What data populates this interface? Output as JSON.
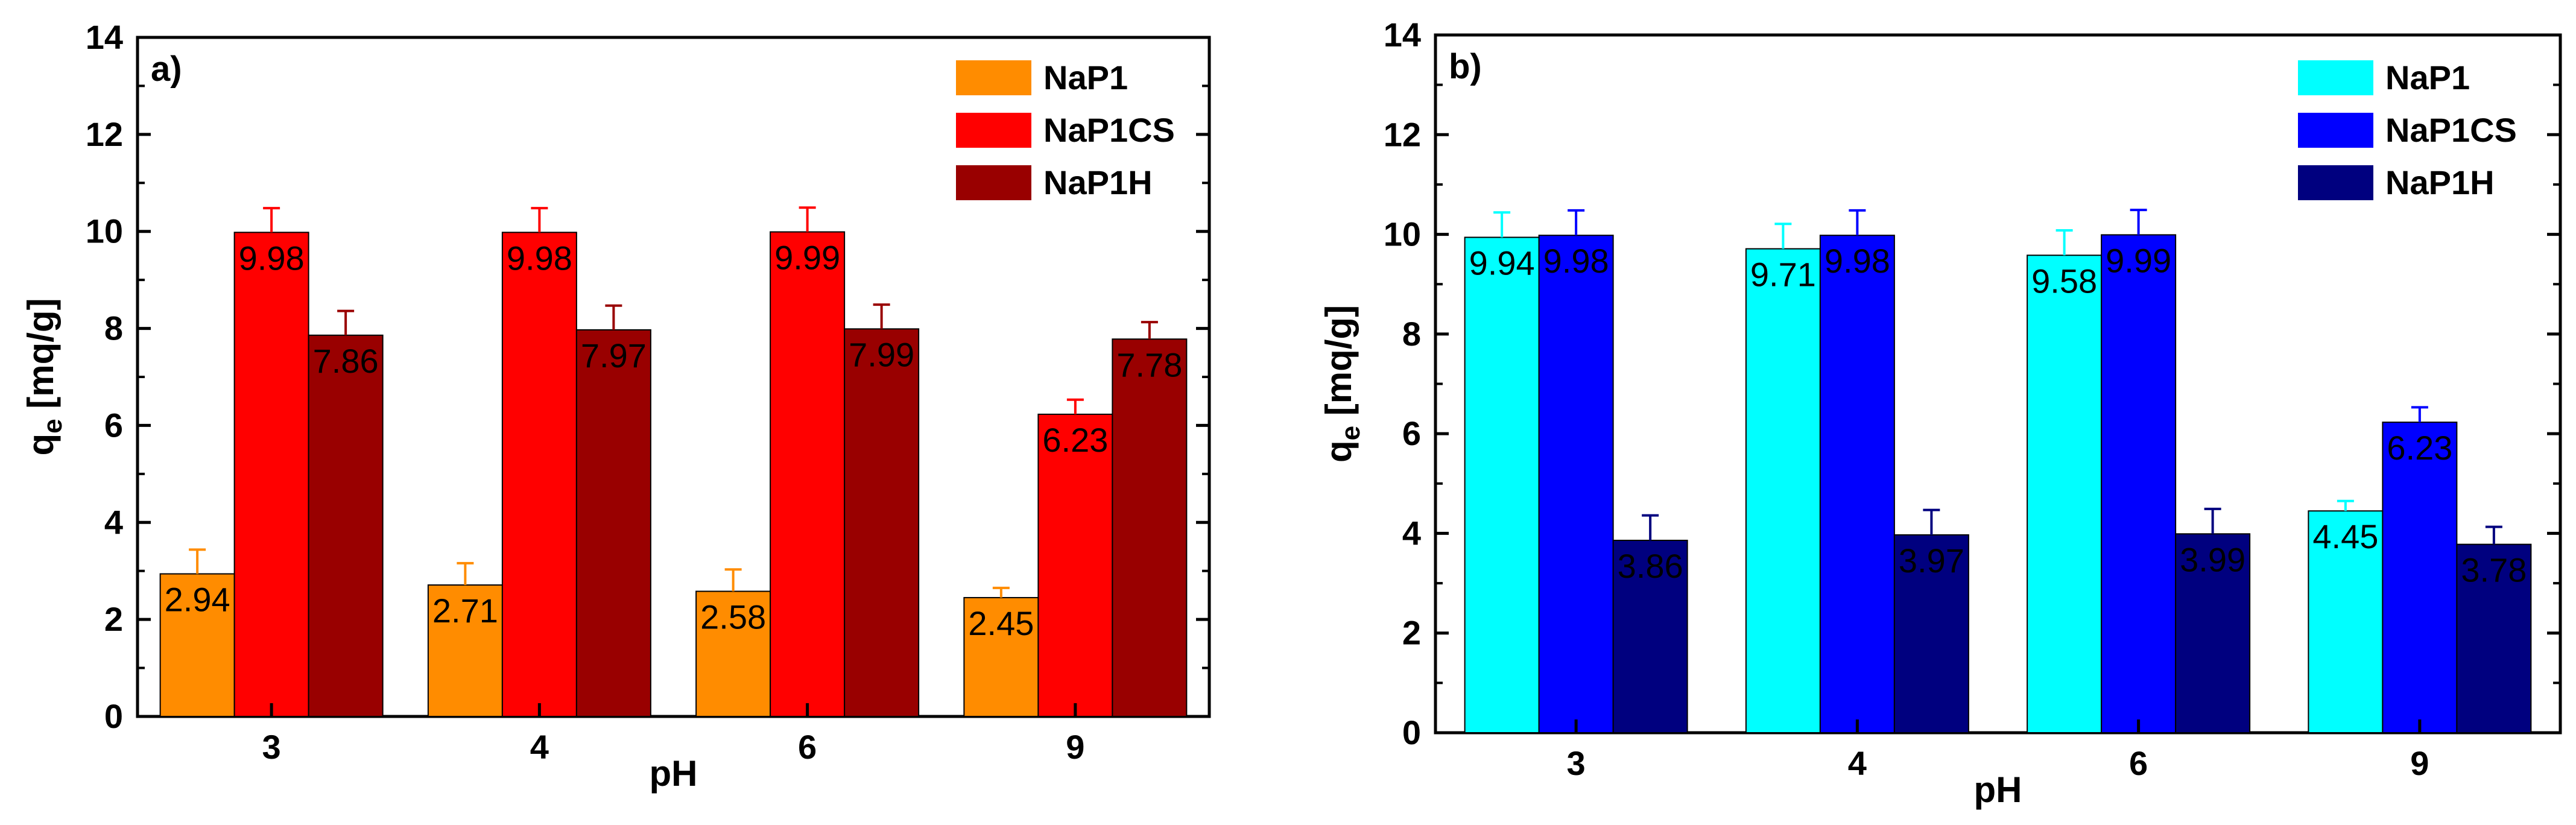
{
  "chart_data": [
    {
      "type": "bar",
      "panel_label": "a)",
      "categories": [
        "3",
        "4",
        "6",
        "9"
      ],
      "xlabel": "pH",
      "ylabel_main": "q",
      "ylabel_sub": "e",
      "ylabel_unit": " [mq/g]",
      "ylim": [
        0,
        14
      ],
      "yticks": [
        "0",
        "2",
        "4",
        "6",
        "8",
        "10",
        "12",
        "14"
      ],
      "legend_position": "top-right",
      "series": [
        {
          "name": "NaP1",
          "color": "#ff8c00",
          "values": [
            2.94,
            2.71,
            2.58,
            2.45
          ],
          "errors": [
            0.5,
            0.45,
            0.45,
            0.2
          ],
          "labels": [
            "2.94",
            "2.71",
            "2.58",
            "2.45"
          ]
        },
        {
          "name": "NaP1CS",
          "color": "#ff0000",
          "values": [
            9.98,
            9.98,
            9.99,
            6.23
          ],
          "errors": [
            0.5,
            0.5,
            0.5,
            0.3
          ],
          "labels": [
            "9.98",
            "9.98",
            "9.99",
            "6.23"
          ]
        },
        {
          "name": "NaP1H",
          "color": "#990000",
          "values": [
            7.86,
            7.97,
            7.99,
            7.78
          ],
          "errors": [
            0.5,
            0.5,
            0.5,
            0.35
          ],
          "labels": [
            "7.86",
            "7.97",
            "7.99",
            "7.78"
          ]
        }
      ]
    },
    {
      "type": "bar",
      "panel_label": "b)",
      "categories": [
        "3",
        "4",
        "6",
        "9"
      ],
      "xlabel": "pH",
      "ylabel_main": "q",
      "ylabel_sub": "e",
      "ylabel_unit": " [mq/g]",
      "ylim": [
        0,
        14
      ],
      "yticks": [
        "0",
        "2",
        "4",
        "6",
        "8",
        "10",
        "12",
        "14"
      ],
      "legend_position": "top-right",
      "series": [
        {
          "name": "NaP1",
          "color": "#00ffff",
          "values": [
            9.94,
            9.71,
            9.58,
            4.45
          ],
          "errors": [
            0.5,
            0.5,
            0.5,
            0.2
          ],
          "labels": [
            "9.94",
            "9.71",
            "9.58",
            "4.45"
          ]
        },
        {
          "name": "NaP1CS",
          "color": "#0000ff",
          "values": [
            9.98,
            9.98,
            9.99,
            6.23
          ],
          "errors": [
            0.5,
            0.5,
            0.5,
            0.3
          ],
          "labels": [
            "9.98",
            "9.98",
            "9.99",
            "6.23"
          ]
        },
        {
          "name": "NaP1H",
          "color": "#00007f",
          "values": [
            3.86,
            3.97,
            3.99,
            3.78
          ],
          "errors": [
            0.5,
            0.5,
            0.5,
            0.35
          ],
          "labels": [
            "3.86",
            "3.97",
            "3.99",
            "3.78"
          ]
        }
      ]
    }
  ]
}
